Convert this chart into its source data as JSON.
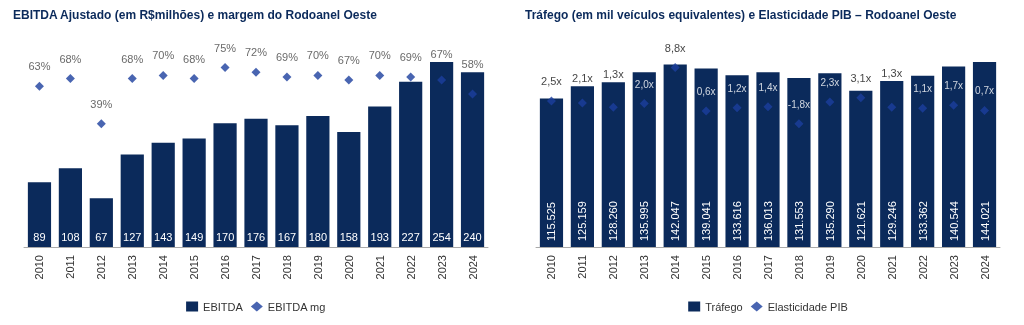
{
  "chart_data": [
    {
      "type": "bar",
      "title": "EBITDA Ajustado (em R$milhões) e margem do Rodoanel Oeste",
      "categories": [
        "2010",
        "2011",
        "2012",
        "2013",
        "2014",
        "2015",
        "2016",
        "2017",
        "2018",
        "2019",
        "2020",
        "2021",
        "2022",
        "2023",
        "2024"
      ],
      "legend": "bottom",
      "marker": "diamond",
      "series": [
        {
          "name": "EBITDA",
          "color": "#0b2a5b",
          "values": [
            89,
            108,
            67,
            127,
            143,
            149,
            170,
            176,
            167,
            180,
            158,
            193,
            227,
            254,
            240
          ],
          "data_labels": true
        },
        {
          "name": "EBITDA mg",
          "type": "scatter",
          "axis": "y2",
          "color": "#1c3f9e",
          "values": [
            63,
            68,
            39,
            68,
            70,
            68,
            75,
            72,
            69,
            70,
            67,
            70,
            69,
            67,
            58
          ],
          "value_labels": [
            "63%",
            "68%",
            "39%",
            "68%",
            "70%",
            "68%",
            "75%",
            "72%",
            "69%",
            "70%",
            "67%",
            "70%",
            "69%",
            "67%",
            "58%"
          ]
        }
      ]
    },
    {
      "type": "bar",
      "title": "Tráfego (em mil veículos equivalentes) e Elasticidade PIB – Rodoanel Oeste",
      "categories": [
        "2010",
        "2011",
        "2012",
        "2013",
        "2014",
        "2015",
        "2016",
        "2017",
        "2018",
        "2019",
        "2020",
        "2021",
        "2022",
        "2023",
        "2024"
      ],
      "legend": "bottom",
      "marker": "diamond",
      "series": [
        {
          "name": "Tráfego",
          "color": "#0b2a5b",
          "values": [
            115525,
            125159,
            128260,
            135995,
            142047,
            139041,
            133616,
            136013,
            131553,
            135290,
            121621,
            129246,
            133362,
            140544,
            144021
          ],
          "value_labels": [
            "115.525",
            "125.159",
            "128.260",
            "135.995",
            "142.047",
            "139.041",
            "133.616",
            "136.013",
            "131.553",
            "135.290",
            "121.621",
            "129.246",
            "133.362",
            "140.544",
            "144.021"
          ]
        },
        {
          "name": "Elasticidade PIB",
          "type": "scatter",
          "axis": "y2",
          "color": "#1c3f9e",
          "values": [
            2.5,
            2.1,
            1.3,
            2.0,
            8.8,
            0.6,
            1.2,
            1.4,
            -1.8,
            2.3,
            3.1,
            1.3,
            1.1,
            1.7,
            0.7
          ],
          "value_labels": [
            "2,5x",
            "2,1x",
            "1,3x",
            "2,0x",
            "8,8x",
            "0,6x",
            "1,2x",
            "1,4x",
            "-1,8x",
            "2,3x",
            "3,1x",
            "1,3x",
            "1,1x",
            "1,7x",
            "0,7x"
          ]
        }
      ]
    }
  ]
}
